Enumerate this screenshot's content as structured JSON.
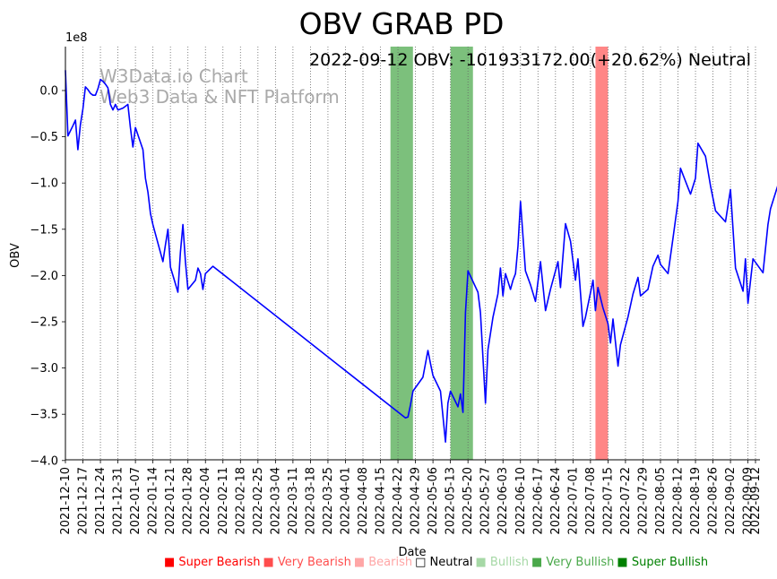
{
  "chart_data": {
    "type": "line",
    "title": "OBV GRAB PD",
    "annotation": "2022-09-12 OBV: -101933172.00(+20.62%) Neutral",
    "watermark": [
      "W3Data.io Chart",
      "Web3 Data & NFT Platform"
    ],
    "xlabel": "Date",
    "ylabel": "OBV",
    "y_offset_label": "1e8",
    "ylim": [
      -4.0,
      0.45
    ],
    "y_ticks": [
      0.0,
      -0.5,
      -1.0,
      -1.5,
      -2.0,
      -2.5,
      -3.0,
      -3.5,
      -4.0
    ],
    "y_tick_labels": [
      "0.0",
      "−0.5",
      "−1.0",
      "−1.5",
      "−2.0",
      "−2.5",
      "−3.0",
      "−3.5",
      "−4.0"
    ],
    "x_range": [
      "2021-12-10",
      "2022-09-12"
    ],
    "x_tick_labels": [
      "2021-12-10",
      "2021-12-17",
      "2021-12-24",
      "2021-12-31",
      "2022-01-07",
      "2022-01-14",
      "2022-01-21",
      "2022-01-28",
      "2022-02-04",
      "2022-02-11",
      "2022-02-18",
      "2022-02-25",
      "2022-03-04",
      "2022-03-11",
      "2022-03-18",
      "2022-03-25",
      "2022-04-01",
      "2022-04-08",
      "2022-04-15",
      "2022-04-22",
      "2022-04-29",
      "2022-05-06",
      "2022-05-13",
      "2022-05-20",
      "2022-05-27",
      "2022-06-03",
      "2022-06-10",
      "2022-06-17",
      "2022-06-24",
      "2022-07-01",
      "2022-07-08",
      "2022-07-15",
      "2022-07-22",
      "2022-07-29",
      "2022-08-05",
      "2022-08-12",
      "2022-08-19",
      "2022-08-26",
      "2022-09-02",
      "2022-09-09",
      "2022-09-12"
    ],
    "grid": "vertical dotted",
    "line_color": "#0000ff",
    "bands": [
      {
        "start": "2022-04-19",
        "end": "2022-04-28",
        "signal": "Very Bullish",
        "color": "#4aa84a"
      },
      {
        "start": "2022-05-13",
        "end": "2022-05-22",
        "signal": "Very Bullish",
        "color": "#4aa84a"
      },
      {
        "start": "2022-07-10",
        "end": "2022-07-15",
        "signal": "Very Bearish",
        "color": "#ff4d4d"
      }
    ],
    "series": [
      {
        "points": [
          [
            "2021-12-10",
            0.22
          ],
          [
            "2021-12-11",
            -0.49
          ],
          [
            "2021-12-13",
            -0.38
          ],
          [
            "2021-12-14",
            -0.32
          ],
          [
            "2021-12-15",
            -0.64
          ],
          [
            "2021-12-16",
            -0.37
          ],
          [
            "2021-12-17",
            -0.2
          ],
          [
            "2021-12-18",
            0.04
          ],
          [
            "2021-12-19",
            0.01
          ],
          [
            "2021-12-20",
            -0.03
          ],
          [
            "2021-12-21",
            -0.05
          ],
          [
            "2021-12-22",
            -0.05
          ],
          [
            "2021-12-23",
            0.02
          ],
          [
            "2021-12-24",
            0.12
          ],
          [
            "2021-12-25",
            0.1
          ],
          [
            "2021-12-26",
            0.07
          ],
          [
            "2021-12-27",
            0.03
          ],
          [
            "2021-12-28",
            -0.15
          ],
          [
            "2021-12-29",
            -0.21
          ],
          [
            "2021-12-30",
            -0.15
          ],
          [
            "2021-12-31",
            -0.21
          ],
          [
            "2022-01-02",
            -0.19
          ],
          [
            "2022-01-04",
            -0.15
          ],
          [
            "2022-01-05",
            -0.4
          ],
          [
            "2022-01-06",
            -0.61
          ],
          [
            "2022-01-07",
            -0.4
          ],
          [
            "2022-01-08",
            -0.48
          ],
          [
            "2022-01-10",
            -0.64
          ],
          [
            "2022-01-11",
            -0.95
          ],
          [
            "2022-01-12",
            -1.1
          ],
          [
            "2022-01-13",
            -1.33
          ],
          [
            "2022-01-14",
            -1.45
          ],
          [
            "2022-01-17",
            -1.75
          ],
          [
            "2022-01-18",
            -1.85
          ],
          [
            "2022-01-19",
            -1.67
          ],
          [
            "2022-01-20",
            -1.5
          ],
          [
            "2022-01-21",
            -1.91
          ],
          [
            "2022-01-22",
            -2.0
          ],
          [
            "2022-01-24",
            -2.18
          ],
          [
            "2022-01-25",
            -1.75
          ],
          [
            "2022-01-26",
            -1.45
          ],
          [
            "2022-01-27",
            -1.85
          ],
          [
            "2022-01-28",
            -2.15
          ],
          [
            "2022-01-31",
            -2.05
          ],
          [
            "2022-02-01",
            -1.92
          ],
          [
            "2022-02-02",
            -1.98
          ],
          [
            "2022-02-03",
            -2.15
          ],
          [
            "2022-02-04",
            -1.98
          ],
          [
            "2022-02-07",
            -1.9
          ],
          [
            "2022-04-25",
            -3.54
          ],
          [
            "2022-04-26",
            -3.53
          ],
          [
            "2022-04-27",
            -3.4
          ],
          [
            "2022-04-28",
            -3.25
          ],
          [
            "2022-05-02",
            -3.1
          ],
          [
            "2022-05-04",
            -2.81
          ],
          [
            "2022-05-05",
            -2.95
          ],
          [
            "2022-05-06",
            -3.08
          ],
          [
            "2022-05-09",
            -3.25
          ],
          [
            "2022-05-11",
            -3.8
          ],
          [
            "2022-05-12",
            -3.38
          ],
          [
            "2022-05-13",
            -3.25
          ],
          [
            "2022-05-16",
            -3.42
          ],
          [
            "2022-05-17",
            -3.28
          ],
          [
            "2022-05-18",
            -3.48
          ],
          [
            "2022-05-19",
            -2.4
          ],
          [
            "2022-05-20",
            -1.95
          ],
          [
            "2022-05-24",
            -2.18
          ],
          [
            "2022-05-25",
            -2.4
          ],
          [
            "2022-05-27",
            -3.38
          ],
          [
            "2022-05-28",
            -2.8
          ],
          [
            "2022-05-30",
            -2.45
          ],
          [
            "2022-06-01",
            -2.2
          ],
          [
            "2022-06-02",
            -1.92
          ],
          [
            "2022-06-03",
            -2.22
          ],
          [
            "2022-06-04",
            -1.98
          ],
          [
            "2022-06-06",
            -2.15
          ],
          [
            "2022-06-07",
            -2.05
          ],
          [
            "2022-06-08",
            -1.98
          ],
          [
            "2022-06-09",
            -1.68
          ],
          [
            "2022-06-10",
            -1.2
          ],
          [
            "2022-06-12",
            -1.95
          ],
          [
            "2022-06-14",
            -2.1
          ],
          [
            "2022-06-16",
            -2.28
          ],
          [
            "2022-06-18",
            -1.85
          ],
          [
            "2022-06-20",
            -2.38
          ],
          [
            "2022-06-22",
            -2.15
          ],
          [
            "2022-06-25",
            -1.85
          ],
          [
            "2022-06-26",
            -2.13
          ],
          [
            "2022-06-28",
            -1.44
          ],
          [
            "2022-06-30",
            -1.63
          ],
          [
            "2022-07-02",
            -2.05
          ],
          [
            "2022-07-03",
            -1.82
          ],
          [
            "2022-07-05",
            -2.55
          ],
          [
            "2022-07-06",
            -2.45
          ],
          [
            "2022-07-09",
            -2.05
          ],
          [
            "2022-07-10",
            -2.38
          ],
          [
            "2022-07-11",
            -2.13
          ],
          [
            "2022-07-13",
            -2.35
          ],
          [
            "2022-07-15",
            -2.52
          ],
          [
            "2022-07-16",
            -2.73
          ],
          [
            "2022-07-17",
            -2.47
          ],
          [
            "2022-07-19",
            -2.98
          ],
          [
            "2022-07-20",
            -2.75
          ],
          [
            "2022-07-23",
            -2.45
          ],
          [
            "2022-07-25",
            -2.2
          ],
          [
            "2022-07-27",
            -2.02
          ],
          [
            "2022-07-28",
            -2.22
          ],
          [
            "2022-07-31",
            -2.15
          ],
          [
            "2022-08-02",
            -1.9
          ],
          [
            "2022-08-04",
            -1.78
          ],
          [
            "2022-08-05",
            -1.88
          ],
          [
            "2022-08-08",
            -1.98
          ],
          [
            "2022-08-10",
            -1.6
          ],
          [
            "2022-08-12",
            -1.2
          ],
          [
            "2022-08-13",
            -0.84
          ],
          [
            "2022-08-16",
            -1.05
          ],
          [
            "2022-08-17",
            -1.12
          ],
          [
            "2022-08-19",
            -0.95
          ],
          [
            "2022-08-20",
            -0.57
          ],
          [
            "2022-08-23",
            -0.71
          ],
          [
            "2022-08-25",
            -1.03
          ],
          [
            "2022-08-27",
            -1.3
          ],
          [
            "2022-08-31",
            -1.42
          ],
          [
            "2022-09-02",
            -1.07
          ],
          [
            "2022-09-04",
            -1.92
          ],
          [
            "2022-09-07",
            -2.17
          ],
          [
            "2022-09-08",
            -1.82
          ],
          [
            "2022-09-09",
            -2.3
          ],
          [
            "2022-09-11",
            -1.82
          ],
          [
            "2022-09-15",
            -1.97
          ],
          [
            "2022-09-17",
            -1.45
          ],
          [
            "2022-09-18",
            -1.28
          ],
          [
            "2022-09-21",
            -1.02
          ]
        ]
      }
    ]
  },
  "legend": {
    "items": [
      {
        "label": "■ Super Bearish",
        "color": "#ff0000"
      },
      {
        "label": "■ Very Bearish",
        "color": "#ff4d4d"
      },
      {
        "label": "■ Bearish",
        "color": "#ffa6a6"
      },
      {
        "label": "□ Neutral",
        "color": "#000000"
      },
      {
        "label": "■ Bullish",
        "color": "#a6d8a6"
      },
      {
        "label": "■ Very Bullish",
        "color": "#4aa84a"
      },
      {
        "label": "■ Super Bullish",
        "color": "#008000"
      }
    ]
  }
}
